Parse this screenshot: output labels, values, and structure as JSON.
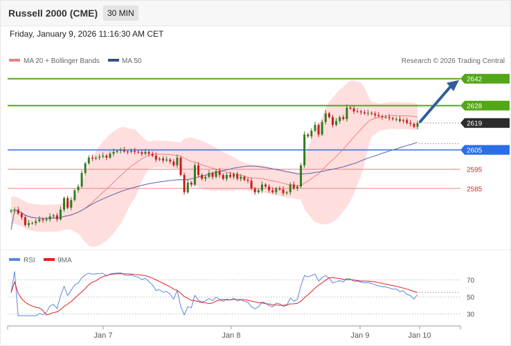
{
  "header": {
    "title": "Russell 2000 (CME)",
    "timeframe": "30 MIN"
  },
  "datetime": "Friday, January 9, 2026 11:16:30 AM CET",
  "copyright": "Research © 2026 Trading Central",
  "colors": {
    "up": "#2e7d1f",
    "down": "#c81e1e",
    "bb": "#ffd6d6",
    "ma20": "#f08080",
    "ma50": "#5466a8",
    "green_level": "#52a617",
    "blue_level": "#2a6ee8",
    "red_level": "#ee8888",
    "arrow": "#2f5d9a",
    "rsi": "#5b86e0",
    "rsi_ma": "#e02020"
  },
  "legend": {
    "ma20": "MA 20 + Bollinger Bands",
    "ma50": "MA 50",
    "rsi": "RSI",
    "rsi_ma": "9MA"
  },
  "chart_data": [
    {
      "type": "candlestick",
      "title": "Russell 2000 (CME)",
      "ylim": [
        2556,
        2648
      ],
      "x_ticks": [
        "Jan 7",
        "Jan 8",
        "Jan 9",
        "Jan 10"
      ],
      "levels": [
        {
          "label": "2642",
          "value": 2642,
          "kind": "resistance"
        },
        {
          "label": "2628",
          "value": 2628,
          "kind": "resistance"
        },
        {
          "label": "2619",
          "value": 2619,
          "kind": "last"
        },
        {
          "label": "2605",
          "value": 2605,
          "kind": "pivot"
        },
        {
          "label": "2595",
          "value": 2595,
          "kind": "support"
        },
        {
          "label": "2585",
          "value": 2585,
          "kind": "support"
        }
      ],
      "projection": {
        "from": 2619,
        "to": 2642
      },
      "closes": [
        2573.5,
        2574,
        2572,
        2570,
        2566,
        2567,
        2567,
        2568,
        2569,
        2568.5,
        2569,
        2570.5,
        2571,
        2569,
        2574,
        2580,
        2575,
        2579,
        2584,
        2586,
        2593,
        2598,
        2601,
        2600.5,
        2601,
        2601.5,
        2602,
        2601,
        2603,
        2604,
        2604.5,
        2605,
        2604.2,
        2604,
        2604.5,
        2604,
        2603.8,
        2603,
        2604,
        2603,
        2602,
        2600,
        2600.5,
        2599.5,
        2600,
        2599,
        2597,
        2601,
        2592,
        2583,
        2588,
        2587,
        2597,
        2592,
        2590,
        2591,
        2593,
        2591,
        2594,
        2592,
        2590,
        2592,
        2591,
        2592.5,
        2590,
        2591,
        2589.5,
        2589,
        2585,
        2583,
        2584,
        2587,
        2586,
        2584,
        2583,
        2585,
        2584.5,
        2582.5,
        2583,
        2587,
        2585,
        2586,
        2597,
        2613,
        2612,
        2615,
        2618,
        2613,
        2619.5,
        2624,
        2622,
        2618,
        2620,
        2622,
        2621,
        2627,
        2626.5,
        2625,
        2625,
        2624.5,
        2624,
        2624.2,
        2623.8,
        2623,
        2622.5,
        2622,
        2622,
        2621.5,
        2621,
        2621,
        2620,
        2620.5,
        2619,
        2618.5,
        2617,
        2619
      ],
      "rsi": {
        "ylim": [
          20,
          85
        ],
        "ticks": [
          70,
          50,
          30
        ]
      }
    }
  ]
}
